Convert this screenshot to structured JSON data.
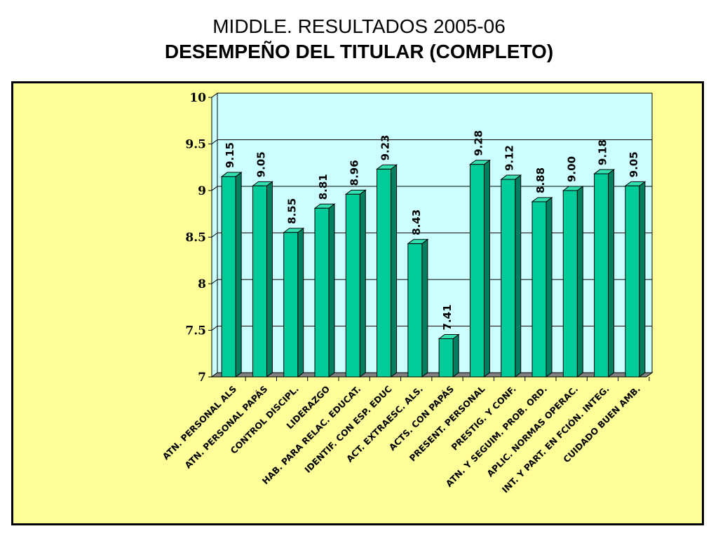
{
  "title_line1": "MIDDLE. RESULTADOS 2005-06",
  "title_line2": "DESEMPEÑO DEL TITULAR (COMPLETO)",
  "colors": {
    "plot_bg": "#ccffff",
    "chart_bg": "#ffff99",
    "bar_front": "#00cc99",
    "bar_side": "#008060",
    "bar_top": "#33e0b0"
  },
  "chart_data": {
    "type": "bar",
    "title": "",
    "xlabel": "",
    "ylabel": "",
    "ylim": [
      7,
      10
    ],
    "yticks": [
      "7",
      "7.5",
      "8",
      "8.5",
      "9",
      "9.5",
      "10"
    ],
    "grid": true,
    "categories": [
      "ATN. PERSONAL ALS",
      "ATN. PERSONAL PAPÁS",
      "CONTROL DISCIPL.",
      "LIDERAZGO",
      "HAB. PARA RELAC. EDUCAT.",
      "IDENTIF. CON ESP. EDUC",
      "ACT. EXTRAESC. ALS.",
      "ACTS. CON PAPÁS",
      "PRESENT. PERSONAL",
      "PRESTIG. Y CONF.",
      "ATN. Y SEGUIM. PROB. ORD.",
      "APLIC. NORMAS OPERAC.",
      "INT. Y PART. EN FCIÓN. INTEG.",
      "CUIDADO BUEN AMB."
    ],
    "values": [
      9.15,
      9.05,
      8.55,
      8.81,
      8.96,
      9.23,
      8.43,
      7.41,
      9.28,
      9.12,
      8.88,
      9.0,
      9.18,
      9.05
    ],
    "data_labels": [
      "9.15",
      "9.05",
      "8.55",
      "8.81",
      "8.96",
      "9.23",
      "8.43",
      "7.41",
      "9.28",
      "9.12",
      "8.88",
      "9.00",
      "9.18",
      "9.05"
    ]
  }
}
